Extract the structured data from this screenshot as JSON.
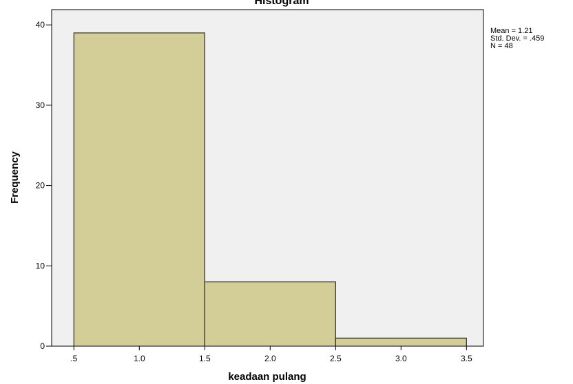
{
  "chart_data": {
    "type": "bar",
    "subtype": "histogram",
    "title": "Histogram",
    "xlabel": "keadaan pulang",
    "ylabel": "Frequency",
    "bins": [
      {
        "start": 0.5,
        "end": 1.5,
        "value": 39
      },
      {
        "start": 1.5,
        "end": 2.5,
        "value": 8
      },
      {
        "start": 2.5,
        "end": 3.5,
        "value": 1
      }
    ],
    "x_ticks": [
      0.5,
      1.0,
      1.5,
      2.0,
      2.5,
      3.0,
      3.5
    ],
    "x_tick_labels": [
      ".5",
      "1.0",
      "1.5",
      "2.0",
      "2.5",
      "3.0",
      "3.5"
    ],
    "y_ticks": [
      0,
      10,
      20,
      30,
      40
    ],
    "y_tick_labels": [
      "0",
      "10",
      "20",
      "30",
      "40"
    ],
    "xlim": [
      0.33,
      3.63
    ],
    "ylim": [
      0,
      41.9
    ],
    "grid": false,
    "colors": {
      "bar_fill": "#D3CE97",
      "bar_stroke": "#2b2b2b",
      "plot_background": "#F0F0F0",
      "axis": "#000000"
    },
    "stats": {
      "mean": "Mean = 1.21",
      "std_dev": "Std. Dev. = .459",
      "n": "N = 48"
    }
  }
}
